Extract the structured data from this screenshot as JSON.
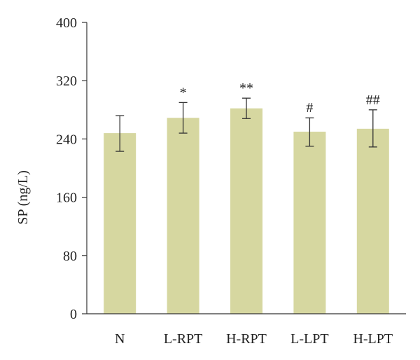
{
  "chart_data": {
    "type": "bar",
    "categories": [
      "N",
      "L-RPT",
      "H-RPT",
      "L-LPT",
      "H-LPT"
    ],
    "values": [
      248,
      269,
      282,
      250,
      254
    ],
    "error_low": [
      223,
      248,
      268,
      230,
      229
    ],
    "error_high": [
      272,
      290,
      296,
      269,
      280
    ],
    "annotations": [
      "",
      "*",
      "**",
      "#",
      "##"
    ],
    "xlabel": "",
    "ylabel": "SP (ng/L)",
    "ylim": [
      0,
      400
    ],
    "yticks": [
      "0",
      "80",
      "160",
      "240",
      "320",
      "400"
    ],
    "grid": false,
    "bar_color": "#d6d7a0"
  }
}
